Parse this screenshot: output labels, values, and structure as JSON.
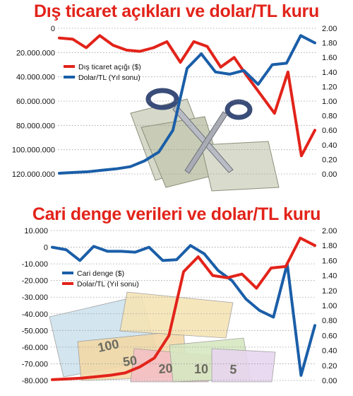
{
  "charts_meta": {
    "top_title": "Dış ticaret açıkları ve dolar/TL kuru",
    "bottom_title": "Cari denge verileri ve dolar/TL kuru"
  },
  "chart_data": [
    {
      "type": "line",
      "title": "Dış ticaret açıkları ve dolar/TL kuru",
      "left_axis": {
        "ticks": [
          "0",
          "20.000.000",
          "40.000.000",
          "60.000.000",
          "80.000.000",
          "100.000.000",
          "120.000.000"
        ],
        "ylim": [
          0,
          120000000
        ],
        "inverted": true
      },
      "right_axis": {
        "ticks": [
          "2.00",
          "1.80",
          "1.60",
          "1.40",
          "1.20",
          "1.00",
          "0.80",
          "0.60",
          "0.40",
          "0.20",
          "0.00"
        ],
        "ylim": [
          0,
          2.0
        ]
      },
      "legend_position": "upper-left",
      "series": [
        {
          "name": "Dış ticaret açığı ($)",
          "color": "#e2231a",
          "axis": "left",
          "values": [
            8000000,
            9000000,
            16000000,
            6000000,
            14000000,
            18000000,
            19000000,
            16000000,
            11000000,
            28000000,
            11000000,
            15000000,
            32000000,
            24000000,
            40000000,
            55000000,
            70000000,
            36000000,
            105000000,
            84000000
          ]
        },
        {
          "name": "Dolar/TL (Yıl sonu)",
          "color": "#1a5ea8",
          "axis": "right",
          "values": [
            0.01,
            0.02,
            0.03,
            0.05,
            0.07,
            0.1,
            0.18,
            0.3,
            0.6,
            1.45,
            1.65,
            1.4,
            1.37,
            1.42,
            1.23,
            1.5,
            1.52,
            1.9,
            1.8
          ]
        }
      ]
    },
    {
      "type": "line",
      "title": "Cari denge verileri ve dolar/TL kuru",
      "left_axis": {
        "ticks": [
          "10.000",
          "0",
          "-10.000",
          "-20.000",
          "-30.000",
          "-40.000",
          "-50.000",
          "-60.000",
          "-70.000",
          "-80.000"
        ],
        "ylim": [
          -80000,
          10000
        ]
      },
      "right_axis": {
        "ticks": [
          "2.00",
          "1.80",
          "1.60",
          "1.40",
          "1.20",
          "1.00",
          "0.80",
          "0.60",
          "0.40",
          "0.20",
          "0.00"
        ],
        "ylim": [
          0,
          2.0
        ]
      },
      "legend_position": "middle-left",
      "series": [
        {
          "name": "Cari denge ($)",
          "color": "#1a5ea8",
          "axis": "left",
          "values": [
            0,
            -1500,
            -8000,
            500,
            -2500,
            -2500,
            -3000,
            0,
            -8000,
            -7500,
            1000,
            -4000,
            -14000,
            -20000,
            -31000,
            -38000,
            -42000,
            -10000,
            -77000,
            -47000
          ]
        },
        {
          "name": "Dolar/TL (Yıl sonu)",
          "color": "#e2231a",
          "axis": "right",
          "values": [
            0.01,
            0.02,
            0.03,
            0.05,
            0.07,
            0.1,
            0.18,
            0.3,
            0.6,
            1.45,
            1.65,
            1.4,
            1.37,
            1.42,
            1.23,
            1.5,
            1.52,
            1.9,
            1.8
          ]
        }
      ]
    }
  ],
  "decor": {
    "top_image": "banknotes-with-scissors",
    "bottom_image": "turkish-lira-banknotes",
    "banknote_numbers": [
      "100",
      "50",
      "20",
      "10",
      "5"
    ]
  }
}
